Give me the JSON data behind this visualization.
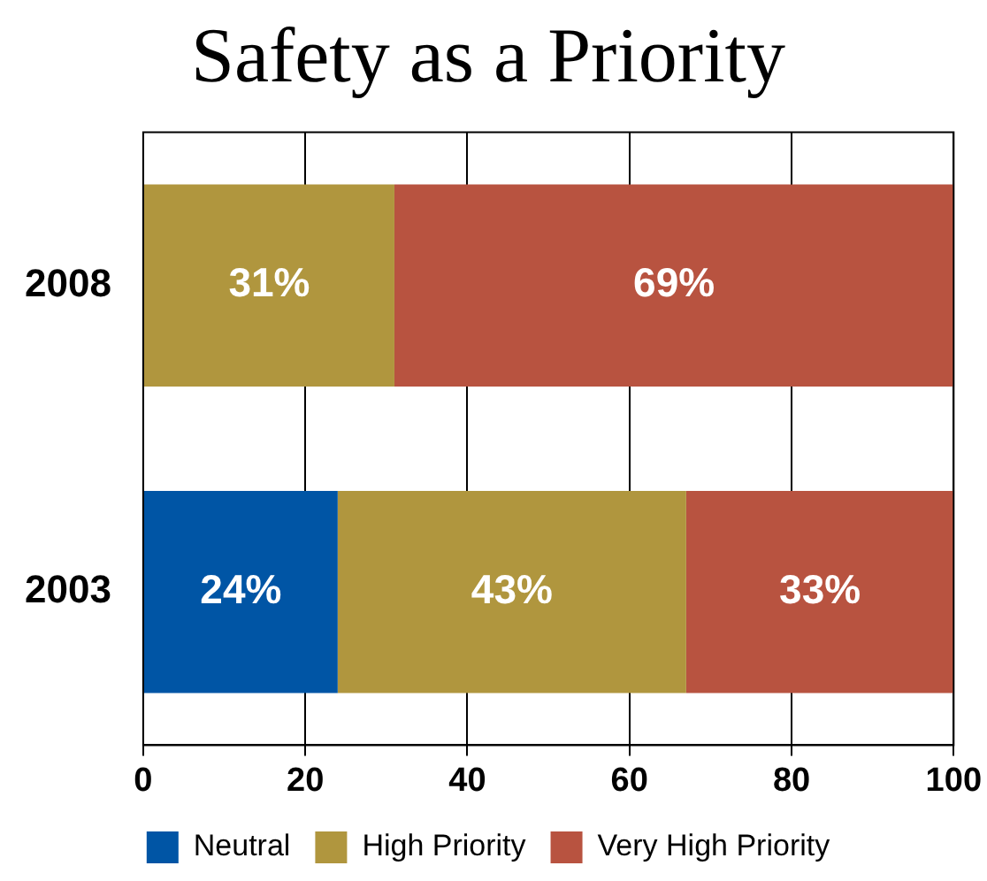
{
  "chart_data": {
    "type": "bar",
    "title": "Safety as a Priority",
    "orientation": "horizontal",
    "stacked": true,
    "categories": [
      "2008",
      "2003"
    ],
    "series": [
      {
        "name": "Neutral",
        "color": "#0055a5",
        "values": [
          null,
          24
        ],
        "value_labels": [
          null,
          "24%"
        ]
      },
      {
        "name": "High Priority",
        "color": "#b0963e",
        "values": [
          31,
          43
        ],
        "value_labels": [
          "31%",
          "43%"
        ]
      },
      {
        "name": "Very High Priority",
        "color": "#b85340",
        "values": [
          69,
          33
        ],
        "value_labels": [
          "69%",
          "33%"
        ]
      }
    ],
    "xlim": [
      0,
      100
    ],
    "xticks": [
      0,
      20,
      40,
      60,
      80,
      100
    ],
    "grid": "x",
    "legend": "bottom"
  }
}
